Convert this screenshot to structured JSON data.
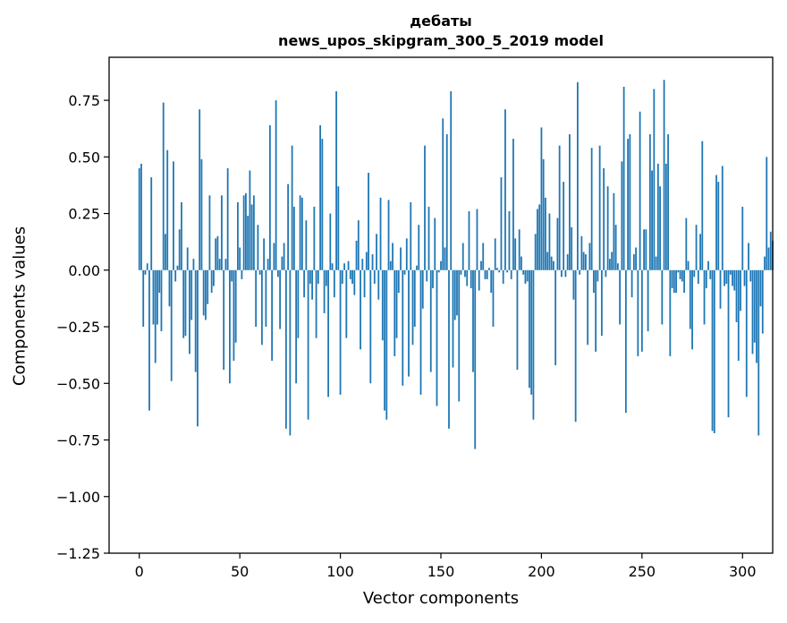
{
  "chart_data": {
    "type": "bar",
    "title": "дебаты",
    "subtitle": "news_upos_skipgram_300_5_2019 model",
    "xlabel": "Vector components",
    "ylabel": "Components values",
    "xlim": [
      -15,
      315
    ],
    "ylim": [
      -1.25,
      0.94
    ],
    "xticks": [
      0,
      50,
      100,
      150,
      200,
      250,
      300
    ],
    "yticks": [
      -1.25,
      -1.0,
      -0.75,
      -0.5,
      -0.25,
      0.0,
      0.25,
      0.5,
      0.75
    ],
    "ytick_labels": [
      "−1.25",
      "−1.00",
      "−0.75",
      "−0.50",
      "−0.25",
      "0.00",
      "0.25",
      "0.50",
      "0.75"
    ],
    "bar_color": "#1f77b4",
    "grid": false,
    "values": [
      0.45,
      0.47,
      -0.25,
      -0.02,
      0.03,
      -0.62,
      0.41,
      -0.24,
      -0.41,
      -0.24,
      -0.1,
      -0.27,
      0.74,
      0.16,
      0.53,
      -0.16,
      -0.49,
      0.48,
      -0.05,
      0.02,
      0.18,
      0.3,
      -0.3,
      -0.29,
      0.1,
      -0.37,
      -0.22,
      0.05,
      -0.45,
      -0.69,
      0.71,
      0.49,
      -0.2,
      -0.22,
      -0.15,
      0.33,
      -0.1,
      -0.07,
      0.14,
      0.15,
      0.05,
      0.33,
      -0.44,
      0.05,
      0.45,
      -0.5,
      -0.05,
      -0.4,
      -0.32,
      0.3,
      0.1,
      -0.04,
      0.33,
      0.34,
      0.24,
      0.44,
      0.29,
      0.33,
      -0.25,
      0.2,
      -0.02,
      -0.33,
      0.14,
      -0.25,
      0.05,
      0.64,
      -0.4,
      0.12,
      0.75,
      -0.03,
      -0.26,
      0.06,
      0.12,
      -0.7,
      0.38,
      -0.73,
      0.55,
      0.28,
      -0.5,
      -0.3,
      0.33,
      0.32,
      -0.12,
      0.22,
      -0.66,
      -0.06,
      -0.13,
      0.28,
      -0.3,
      -0.06,
      0.64,
      0.58,
      -0.19,
      -0.07,
      -0.56,
      0.25,
      0.03,
      -0.12,
      0.79,
      0.37,
      -0.55,
      -0.06,
      0.03,
      -0.3,
      0.04,
      -0.04,
      -0.06,
      -0.11,
      0.13,
      0.22,
      -0.35,
      0.05,
      -0.12,
      0.08,
      0.43,
      -0.5,
      0.07,
      -0.06,
      0.16,
      -0.13,
      0.32,
      -0.31,
      -0.62,
      -0.66,
      0.31,
      0.04,
      0.12,
      -0.38,
      -0.3,
      -0.1,
      0.1,
      -0.51,
      -0.02,
      0.14,
      -0.47,
      0.3,
      -0.33,
      -0.25,
      0.02,
      0.2,
      -0.55,
      -0.17,
      0.55,
      -0.05,
      0.28,
      -0.45,
      -0.08,
      0.23,
      -0.6,
      -0.01,
      0.04,
      0.67,
      0.1,
      0.6,
      -0.7,
      0.79,
      -0.43,
      -0.22,
      -0.2,
      -0.58,
      -0.02,
      0.12,
      -0.03,
      -0.07,
      0.26,
      -0.08,
      -0.45,
      -0.79,
      0.27,
      -0.09,
      0.04,
      0.12,
      -0.04,
      -0.04,
      0.01,
      -0.1,
      -0.25,
      0.14,
      0.01,
      -0.01,
      0.41,
      -0.06,
      0.71,
      -0.01,
      0.26,
      -0.04,
      0.58,
      0.14,
      -0.44,
      0.18,
      0.06,
      -0.02,
      -0.06,
      -0.05,
      -0.52,
      -0.55,
      -0.66,
      0.16,
      0.27,
      0.29,
      0.63,
      0.49,
      0.32,
      0.08,
      0.25,
      0.06,
      0.04,
      -0.42,
      0.23,
      0.55,
      -0.03,
      0.39,
      -0.03,
      0.07,
      0.6,
      0.19,
      -0.13,
      -0.67,
      0.83,
      -0.02,
      0.15,
      0.08,
      0.07,
      -0.33,
      0.12,
      0.54,
      -0.1,
      -0.36,
      -0.05,
      0.55,
      -0.29,
      0.45,
      -0.03,
      0.37,
      0.05,
      0.08,
      0.34,
      0.2,
      0.03,
      -0.24,
      0.48,
      0.81,
      -0.63,
      0.58,
      0.6,
      -0.12,
      0.07,
      0.1,
      -0.38,
      0.7,
      -0.36,
      0.18,
      0.18,
      -0.27,
      0.6,
      0.44,
      0.8,
      0.06,
      0.47,
      0.37,
      -0.24,
      0.84,
      0.47,
      0.6,
      -0.38,
      -0.08,
      -0.1,
      -0.1,
      -0.01,
      -0.04,
      -0.05,
      -0.1,
      0.23,
      0.04,
      -0.26,
      -0.35,
      -0.03,
      0.2,
      -0.06,
      0.16,
      0.57,
      -0.24,
      -0.08,
      0.04,
      -0.04,
      -0.71,
      -0.72,
      0.42,
      0.39,
      -0.17,
      0.46,
      -0.07,
      -0.06,
      -0.65,
      -0.02,
      -0.07,
      -0.09,
      -0.23,
      -0.4,
      -0.18,
      0.28,
      -0.07,
      -0.56,
      0.12,
      -0.05,
      -0.37,
      -0.32,
      -0.41,
      -0.73,
      -0.16,
      -0.28,
      0.06,
      0.5,
      0.1,
      0.17,
      0.13
    ]
  }
}
